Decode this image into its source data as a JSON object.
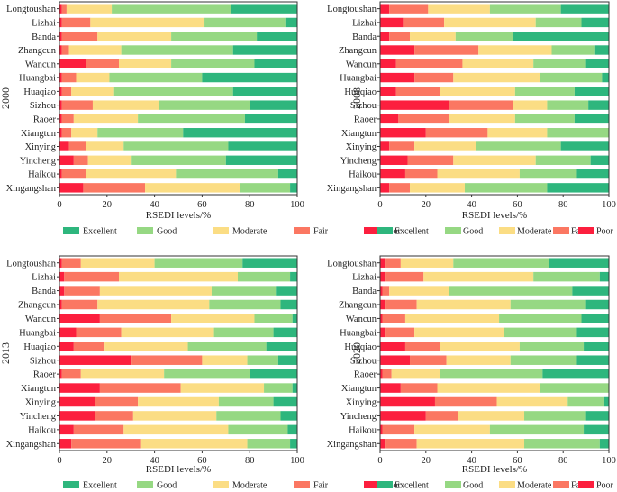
{
  "chart_data": {
    "type": "bar",
    "orientation": "horizontal-stacked",
    "categories": [
      "Longtoushan",
      "Lizhai",
      "Banda",
      "Zhangcun",
      "Wancun",
      "Huangbai",
      "Huaqiao",
      "Sizhou",
      "Raoer",
      "Xiangtun",
      "Xinying",
      "Yincheng",
      "Haikou",
      "Xingangshan"
    ],
    "segment_order": [
      "Poor",
      "Fair",
      "Moderate",
      "Good",
      "Excellent"
    ],
    "colors": {
      "Poor": "#fc1f3e",
      "Fair": "#fb7762",
      "Moderate": "#fbdd84",
      "Good": "#96d883",
      "Excellent": "#2eb67d"
    },
    "xlabel": "RSEDI levels/%",
    "xlim": [
      0,
      100
    ],
    "xticks": [
      "0",
      "20",
      "40",
      "60",
      "80",
      "100"
    ],
    "legend": [
      "Excellent",
      "Good",
      "Moderate",
      "Fair",
      "Poor"
    ],
    "panels": [
      {
        "year": "2000",
        "series": [
          {
            "name": "Poor",
            "values": [
              1,
              1,
              1,
              1,
              11,
              1,
              1,
              1,
              1,
              1,
              4,
              6,
              1,
              10
            ]
          },
          {
            "name": "Fair",
            "values": [
              2,
              12,
              15,
              3,
              14,
              6,
              4,
              13,
              5,
              4,
              7,
              6,
              10,
              26
            ]
          },
          {
            "name": "Moderate",
            "values": [
              19,
              48,
              31,
              22,
              22,
              14,
              18,
              28,
              27,
              11,
              16,
              18,
              38,
              40
            ]
          },
          {
            "name": "Good",
            "values": [
              50,
              34,
              36,
              47,
              35,
              39,
              50,
              38,
              45,
              36,
              44,
              40,
              43,
              21
            ]
          },
          {
            "name": "Excellent",
            "values": [
              28,
              5,
              17,
              27,
              18,
              40,
              27,
              20,
              22,
              48,
              29,
              30,
              8,
              3
            ]
          }
        ]
      },
      {
        "year": "2008",
        "series": [
          {
            "name": "Poor",
            "values": [
              4,
              10,
              4,
              15,
              7,
              15,
              7,
              30,
              8,
              20,
              4,
              12,
              11,
              4
            ]
          },
          {
            "name": "Fair",
            "values": [
              17,
              18,
              9,
              28,
              29,
              17,
              19,
              28,
              22,
              27,
              11,
              20,
              14,
              9
            ]
          },
          {
            "name": "Moderate",
            "values": [
              27,
              40,
              20,
              32,
              31,
              38,
              33,
              15,
              29,
              26,
              27,
              36,
              36,
              24
            ]
          },
          {
            "name": "Good",
            "values": [
              31,
              20,
              25,
              19,
              23,
              27,
              26,
              18,
              26,
              27,
              37,
              24,
              25,
              36
            ]
          },
          {
            "name": "Excellent",
            "values": [
              21,
              12,
              42,
              6,
              10,
              3,
              15,
              9,
              15,
              0,
              21,
              8,
              14,
              27
            ]
          }
        ]
      },
      {
        "year": "2013",
        "series": [
          {
            "name": "Poor",
            "values": [
              1,
              2,
              2,
              1,
              17,
              7,
              6,
              30,
              1,
              17,
              15,
              15,
              6,
              5
            ]
          },
          {
            "name": "Fair",
            "values": [
              8,
              23,
              15,
              15,
              30,
              19,
              13,
              30,
              8,
              34,
              18,
              16,
              21,
              29
            ]
          },
          {
            "name": "Moderate",
            "values": [
              31,
              50,
              47,
              47,
              35,
              39,
              35,
              19,
              35,
              35,
              34,
              35,
              44,
              45
            ]
          },
          {
            "name": "Good",
            "values": [
              37,
              22,
              27,
              30,
              16,
              25,
              33,
              13,
              36,
              12,
              23,
              27,
              25,
              18
            ]
          },
          {
            "name": "Excellent",
            "values": [
              23,
              3,
              9,
              7,
              2,
              10,
              13,
              8,
              20,
              2,
              10,
              7,
              4,
              3
            ]
          }
        ]
      },
      {
        "year": "2020",
        "series": [
          {
            "name": "Poor",
            "values": [
              2,
              2,
              1,
              2,
              1,
              2,
              11,
              13,
              1,
              9,
              24,
              20,
              1,
              2
            ]
          },
          {
            "name": "Fair",
            "values": [
              7,
              17,
              3,
              14,
              10,
              13,
              15,
              16,
              4,
              16,
              27,
              14,
              14,
              14
            ]
          },
          {
            "name": "Moderate",
            "values": [
              23,
              48,
              26,
              41,
              41,
              39,
              35,
              28,
              21,
              45,
              31,
              29,
              33,
              47
            ]
          },
          {
            "name": "Good",
            "values": [
              42,
              29,
              54,
              33,
              36,
              32,
              28,
              29,
              45,
              30,
              16,
              27,
              41,
              33
            ]
          },
          {
            "name": "Excellent",
            "values": [
              26,
              4,
              16,
              10,
              12,
              14,
              11,
              14,
              29,
              0,
              2,
              10,
              11,
              4
            ]
          }
        ]
      }
    ]
  }
}
